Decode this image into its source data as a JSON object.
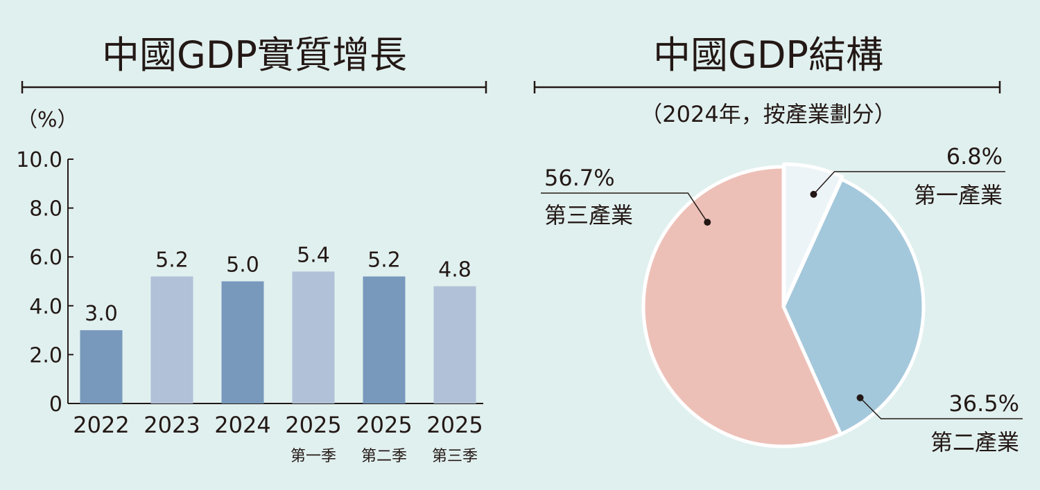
{
  "charts": [
    {
      "title": "中國GDP實質增長",
      "unit": "（%）"
    },
    {
      "title": "中國GDP結構",
      "subtitle": "（2024年，按產業劃分）"
    }
  ],
  "chart_data": [
    {
      "type": "bar",
      "title": "中國GDP實質增長",
      "ylabel": "（%）",
      "ylim": [
        0,
        10
      ],
      "yticks": [
        "0",
        "2.0",
        "4.0",
        "6.0",
        "8.0",
        "10.0"
      ],
      "categories": [
        "2022",
        "2023",
        "2024",
        "2025",
        "2025",
        "2025"
      ],
      "category_sublabels": [
        "",
        "",
        "",
        "第一季",
        "第二季",
        "第三季"
      ],
      "values": [
        3.0,
        5.2,
        5.0,
        5.4,
        5.2,
        4.8
      ],
      "value_labels": [
        "3.0",
        "5.2",
        "5.0",
        "5.4",
        "5.2",
        "4.8"
      ],
      "bar_colors": [
        "#7899bc",
        "#b0c1d8",
        "#7899bc",
        "#b0c1d8",
        "#7899bc",
        "#b0c1d8"
      ]
    },
    {
      "type": "pie",
      "title": "中國GDP結構",
      "subtitle": "（2024年，按產業劃分）",
      "slices": [
        {
          "name": "第一產業",
          "value": 6.8,
          "label": "6.8%",
          "color": "#edf4f7"
        },
        {
          "name": "第二產業",
          "value": 36.5,
          "label": "36.5%",
          "color": "#a4c8db"
        },
        {
          "name": "第三產業",
          "value": 56.7,
          "label": "56.7%",
          "color": "#edc0b7"
        }
      ]
    }
  ]
}
